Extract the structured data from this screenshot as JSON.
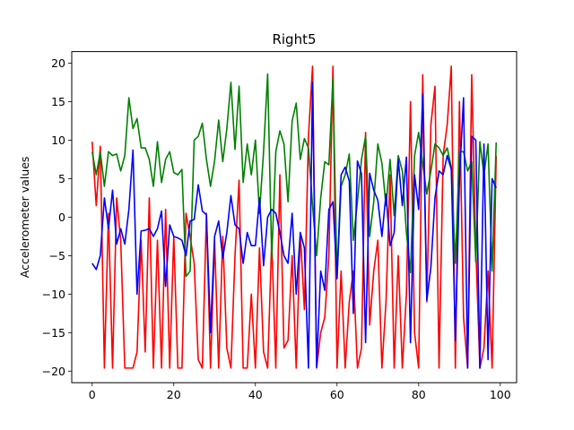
{
  "chart_data": {
    "type": "line",
    "title": "Right5",
    "xlabel": "",
    "ylabel": "Accelerometer values",
    "xlim": [
      -5,
      104
    ],
    "ylim": [
      -21.5,
      21.5
    ],
    "x_ticks": [
      0,
      20,
      40,
      60,
      80,
      100
    ],
    "y_ticks": [
      -20,
      -15,
      -10,
      -5,
      0,
      5,
      10,
      15,
      20
    ],
    "grid": false,
    "legend": "none",
    "series": [
      {
        "color": "#ff0000",
        "values": [
          9.8,
          1.5,
          9.2,
          -19.6,
          0.5,
          -19.6,
          2.5,
          -3,
          -19.6,
          -19.6,
          -19.6,
          -17.5,
          -3,
          -17.5,
          2.5,
          -19.6,
          -3,
          -19.6,
          1,
          -19.6,
          -2.5,
          -19.6,
          -19.6,
          0.5,
          -2.5,
          -6,
          -18.5,
          -19.6,
          0.5,
          -19.6,
          -3,
          -19.6,
          -2.5,
          -17,
          -19.6,
          -5,
          4.8,
          -19.6,
          -19.6,
          -10,
          -19.6,
          -4,
          -17.5,
          -19.6,
          -3,
          -19.6,
          5.5,
          -17,
          -16,
          -5,
          -19.6,
          -2,
          -12,
          10.5,
          19.6,
          -19.6,
          -15,
          -13,
          -5,
          19.6,
          -19.6,
          -7,
          -19.6,
          -11,
          -7,
          -19.6,
          -17,
          11,
          -14,
          -7,
          -3,
          -19.6,
          -11,
          5.5,
          -19.6,
          -5,
          -19.6,
          -10,
          15,
          -15,
          -19.6,
          18.5,
          -11,
          12,
          17,
          -19.6,
          8,
          12,
          19.6,
          -19.6,
          15,
          -13,
          -19.6,
          18.5,
          -4,
          -19.6,
          -17,
          -7,
          -19.6,
          8
        ]
      },
      {
        "color": "#008000",
        "values": [
          8.5,
          5.5,
          8.5,
          4,
          8.5,
          8,
          8.2,
          6,
          8,
          15.5,
          11.5,
          12.8,
          9,
          9,
          7.5,
          4,
          9.8,
          4.5,
          7.5,
          8.5,
          5.8,
          5.5,
          6.2,
          -7.7,
          -7,
          10,
          10.5,
          12.2,
          7.5,
          4,
          7.3,
          12.6,
          7.2,
          11.5,
          17.5,
          8.8,
          17,
          4.5,
          9.5,
          5.5,
          10,
          0.5,
          8.5,
          18.6,
          -5.3,
          8.5,
          11.2,
          9.5,
          2,
          12.5,
          14.8,
          7.5,
          10.2,
          9,
          1.5,
          -5,
          2.5,
          7.2,
          6.8,
          18,
          -8,
          4,
          5.5,
          8.2,
          -3,
          2,
          7.5,
          10.5,
          -2.5,
          2,
          9.5,
          7,
          1.5,
          7.5,
          0.2,
          8,
          6,
          -2,
          -7.2,
          8,
          11,
          7,
          3,
          6,
          9.5,
          9,
          8,
          9,
          6.5,
          -6,
          8.5,
          8.5,
          6,
          7.2,
          -5.8,
          9.8,
          5.5,
          9.5,
          -7,
          9.7
        ]
      },
      {
        "color": "#0000ff",
        "values": [
          -6,
          -6.8,
          -5,
          2.5,
          -1.5,
          3.5,
          -3.5,
          -1.5,
          -3.5,
          1,
          8.7,
          -10,
          -1.8,
          -1.7,
          -1.5,
          -2.5,
          -1.5,
          0.8,
          -9,
          -1,
          -2.5,
          -2.7,
          -3,
          -5,
          -0.5,
          -0.3,
          4.2,
          0.8,
          0.3,
          -15,
          -2.5,
          -0.5,
          -5.3,
          -2,
          2.8,
          -1,
          -1.5,
          -6,
          -2,
          -3.7,
          -3.7,
          2.5,
          -6.3,
          0,
          1,
          0.5,
          -2,
          -5,
          -6,
          0.5,
          -10,
          -2,
          -4,
          -19.6,
          17.5,
          -19.5,
          -7,
          -9.5,
          1,
          2,
          -8,
          5.5,
          6.5,
          4.7,
          -12.5,
          7.3,
          5.6,
          -16.3,
          5.7,
          3.5,
          2.2,
          -2.5,
          3,
          -3.7,
          -2,
          7.5,
          1.5,
          7.8,
          -16.3,
          5.5,
          1,
          16,
          -10.8,
          -6.5,
          2.5,
          6,
          5.5,
          8,
          6.2,
          -16,
          5,
          15.5,
          -19.6,
          10.5,
          10,
          -19.6,
          9.5,
          -18.5,
          5,
          3.8
        ]
      }
    ]
  }
}
